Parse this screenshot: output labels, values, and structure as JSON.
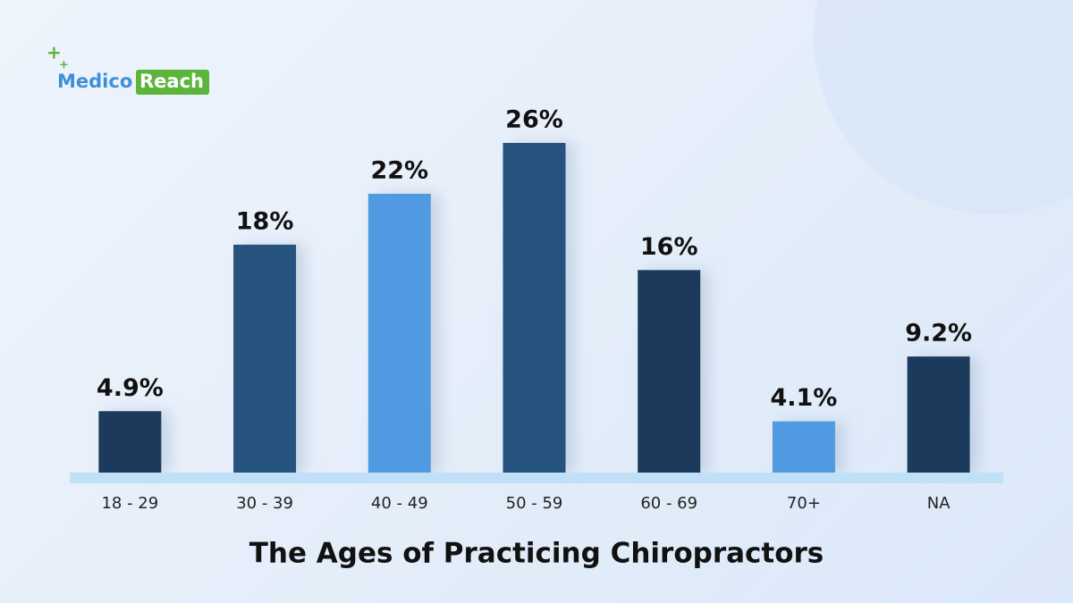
{
  "logo": {
    "left": "Medico",
    "right": "Reach"
  },
  "chart_data": {
    "type": "bar",
    "title": "The Ages of Practicing Chiropractors",
    "categories": [
      "18 - 29",
      "30 - 39",
      "40 - 49",
      "50 - 59",
      "60 - 69",
      "70+",
      "NA"
    ],
    "values": [
      4.9,
      18,
      22,
      26,
      16,
      4.1,
      9.2
    ],
    "value_labels": [
      "4.9%",
      "18%",
      "22%",
      "26%",
      "16%",
      "4.1%",
      "9.2%"
    ],
    "colors": [
      "#1b3a5c",
      "#27537e",
      "#4f9ae0",
      "#27537e",
      "#1b3a5c",
      "#4f9ae0",
      "#1b3a5c"
    ]
  }
}
